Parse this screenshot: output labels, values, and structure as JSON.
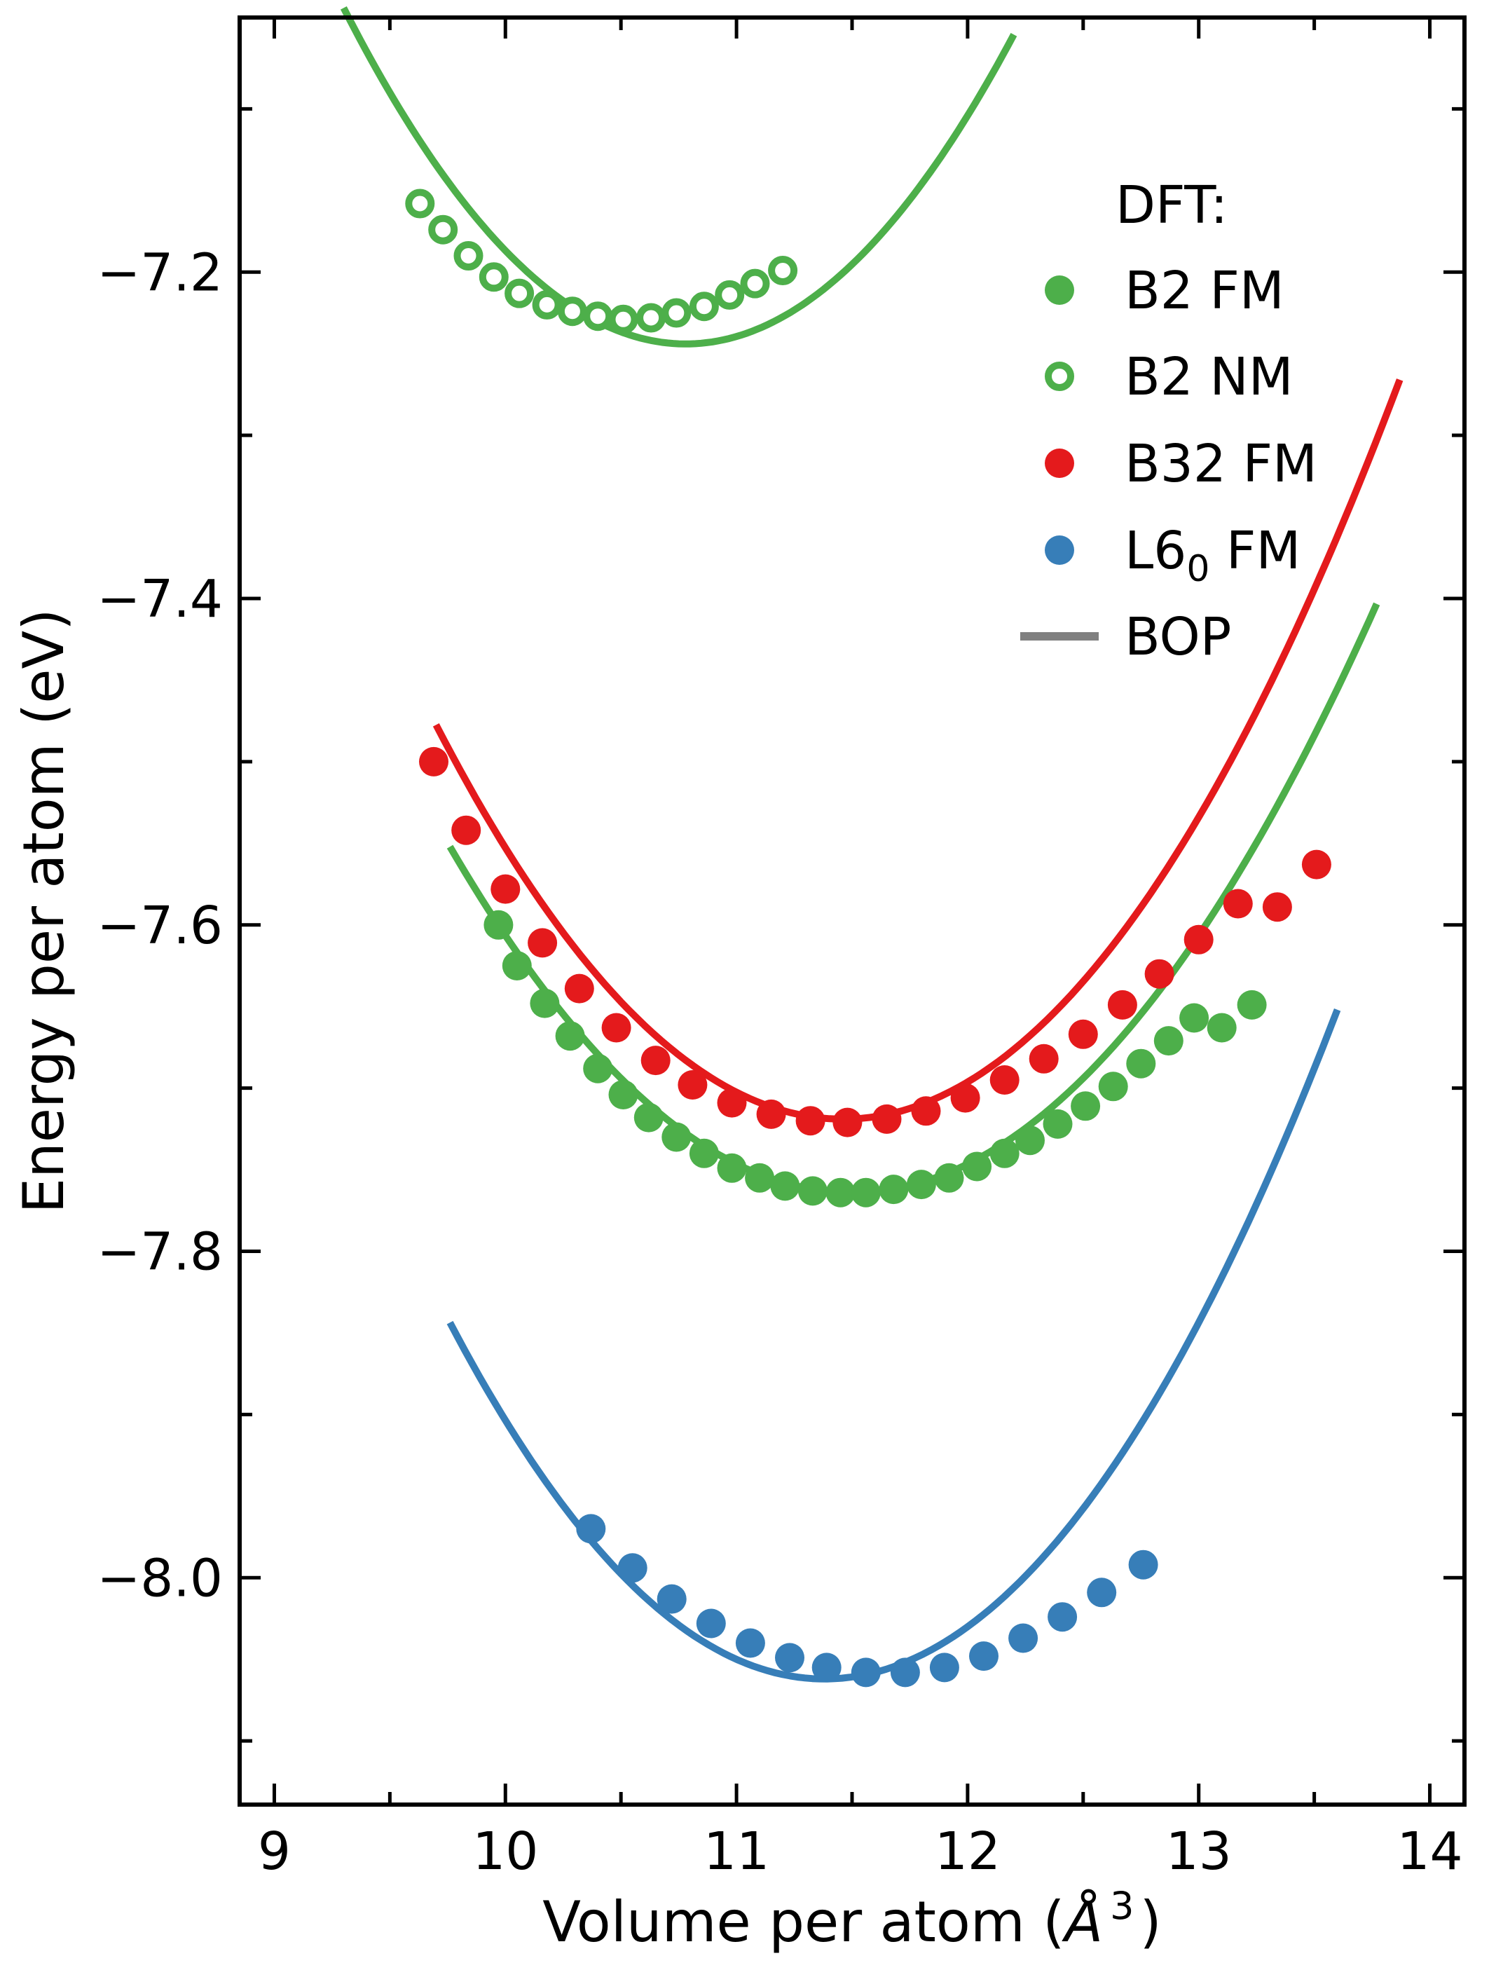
{
  "chart_data": {
    "type": "scatter",
    "title": "",
    "xlabel": "Volume per atom (",
    "xlabel_unit_base": "Å",
    "xlabel_unit_exp": "3",
    "xlabel_close": ")",
    "ylabel": "Energy per atom (eV)",
    "xlim": [
      8.85,
      14.15
    ],
    "ylim": [
      -8.139,
      -7.044
    ],
    "x_ticks": [
      9,
      10,
      11,
      12,
      13,
      14
    ],
    "y_ticks": [
      -8.0,
      -7.8,
      -7.6,
      -7.4,
      -7.2
    ],
    "x_tick_labels": [
      "9",
      "10",
      "11",
      "12",
      "13",
      "14"
    ],
    "y_tick_labels": [
      "−8.0",
      "−7.8",
      "−7.6",
      "−7.4",
      "−7.2"
    ],
    "x_minor_step": 0.5,
    "y_minor_step": 0.1,
    "legend": {
      "position": "top-right",
      "title": "DFT:",
      "entries": [
        {
          "label": "B2 FM",
          "marker": "filled",
          "color": "#4daf4a"
        },
        {
          "label": "B2 NM",
          "marker": "open",
          "color": "#4daf4a"
        },
        {
          "label": "B32 FM",
          "marker": "filled",
          "color": "#e41a1c"
        },
        {
          "label_main": "L6",
          "label_sub": "0",
          "label_tail": " FM",
          "marker": "filled",
          "color": "#377eb8"
        },
        {
          "label": "BOP",
          "marker": "line",
          "color": "#808080"
        }
      ]
    },
    "series": [
      {
        "name": "B2 FM (DFT)",
        "kind": "points",
        "marker": "filled",
        "color": "#4daf4a",
        "x": [
          9.97,
          10.05,
          10.17,
          10.28,
          10.4,
          10.51,
          10.62,
          10.74,
          10.86,
          10.98,
          11.1,
          11.21,
          11.33,
          11.45,
          11.56,
          11.68,
          11.8,
          11.92,
          12.04,
          12.16,
          12.27,
          12.39,
          12.51,
          12.63,
          12.75,
          12.87,
          12.98,
          13.1,
          13.23
        ],
        "y": [
          -7.6,
          -7.625,
          -7.648,
          -7.668,
          -7.688,
          -7.704,
          -7.718,
          -7.73,
          -7.74,
          -7.749,
          -7.755,
          -7.76,
          -7.763,
          -7.764,
          -7.764,
          -7.762,
          -7.759,
          -7.755,
          -7.748,
          -7.74,
          -7.732,
          -7.722,
          -7.711,
          -7.699,
          -7.685,
          -7.671,
          -7.657,
          -7.663,
          -7.649
        ]
      },
      {
        "name": "B2 NM (DFT)",
        "kind": "points",
        "marker": "open",
        "color": "#4daf4a",
        "x": [
          9.63,
          9.73,
          9.84,
          9.95,
          10.06,
          10.18,
          10.29,
          10.4,
          10.51,
          10.63,
          10.74,
          10.86,
          10.97,
          11.08,
          11.2
        ],
        "y": [
          -7.158,
          -7.174,
          -7.19,
          -7.203,
          -7.213,
          -7.22,
          -7.224,
          -7.227,
          -7.229,
          -7.228,
          -7.225,
          -7.221,
          -7.214,
          -7.207,
          -7.199
        ]
      },
      {
        "name": "B32 FM (DFT)",
        "kind": "points",
        "marker": "filled",
        "color": "#e41a1c",
        "x": [
          9.69,
          9.83,
          10.0,
          10.16,
          10.32,
          10.48,
          10.65,
          10.81,
          10.98,
          11.15,
          11.32,
          11.48,
          11.65,
          11.82,
          11.99,
          12.16,
          12.33,
          12.5,
          12.67,
          12.83,
          13.0,
          13.17,
          13.34,
          13.51
        ],
        "y": [
          -7.5,
          -7.542,
          -7.578,
          -7.611,
          -7.639,
          -7.663,
          -7.683,
          -7.698,
          -7.709,
          -7.716,
          -7.72,
          -7.721,
          -7.719,
          -7.714,
          -7.706,
          -7.695,
          -7.682,
          -7.667,
          -7.649,
          -7.63,
          -7.609,
          -7.587,
          -7.589,
          -7.563
        ]
      },
      {
        "name": "L60 FM (DFT)",
        "kind": "points",
        "marker": "filled",
        "color": "#377eb8",
        "x": [
          10.37,
          10.55,
          10.72,
          10.89,
          11.06,
          11.23,
          11.39,
          11.56,
          11.73,
          11.9,
          12.07,
          12.24,
          12.41,
          12.58,
          12.76
        ],
        "y": [
          -7.97,
          -7.994,
          -8.013,
          -8.028,
          -8.04,
          -8.049,
          -8.055,
          -8.058,
          -8.058,
          -8.055,
          -8.048,
          -8.037,
          -8.024,
          -8.009,
          -7.992
        ]
      },
      {
        "name": "B2 FM (BOP)",
        "kind": "curve",
        "color": "#4daf4a",
        "fit": {
          "a": 0.07,
          "x0": 11.5,
          "y0": -7.764
        },
        "x_range": [
          9.76,
          13.77
        ]
      },
      {
        "name": "B2 NM (BOP)",
        "kind": "curve",
        "color": "#4daf4a",
        "fit": {
          "a": 0.094,
          "x0": 10.78,
          "y0": -7.244
        },
        "x_range": [
          9.3,
          12.2
        ]
      },
      {
        "name": "B32 FM (BOP)",
        "kind": "curve",
        "color": "#e41a1c",
        "fit": {
          "a": 0.078,
          "x0": 11.46,
          "y0": -7.719
        },
        "x_range": [
          9.7,
          13.87
        ]
      },
      {
        "name": "L60 FM (BOP)",
        "kind": "curve",
        "color": "#377eb8",
        "fit": {
          "a": 0.0832,
          "x0": 11.38,
          "y0": -8.062
        },
        "x_range": [
          9.76,
          13.6
        ]
      }
    ]
  }
}
